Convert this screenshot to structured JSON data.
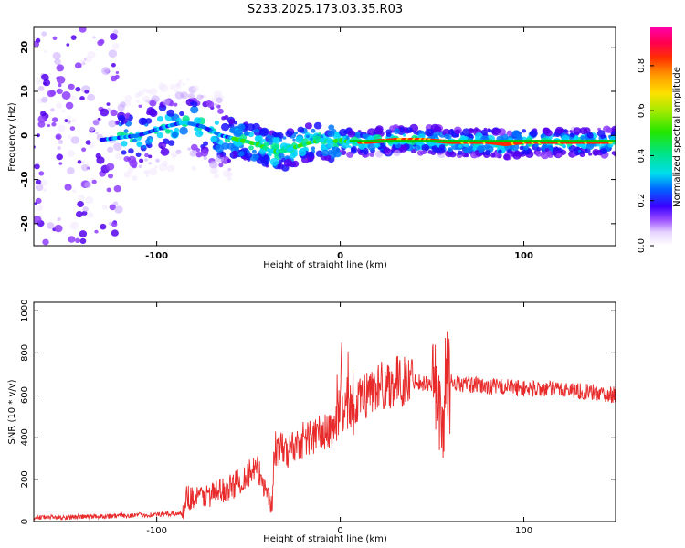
{
  "title": "S233.2025.173.03.35.R03",
  "colors": {
    "snr_line": "#e82a2a",
    "trend_line": "#00cc00",
    "colormap": [
      "#ffffff",
      "#f2e8ff",
      "#c9a7ff",
      "#8d3cff",
      "#5500ee",
      "#1a10ff",
      "#0077ff",
      "#00d5ff",
      "#00e58f",
      "#32e600",
      "#b8ea00",
      "#ffd400",
      "#ff9100",
      "#ff2a00",
      "#ff0099"
    ]
  },
  "chart_data": [
    {
      "type": "heatmap",
      "xlabel": "Height of straight line (km)",
      "ylabel": "Frequency (Hz)",
      "xlim": [
        -167,
        150
      ],
      "ylim": [
        -25,
        24.5
      ],
      "xticks": [
        -100,
        0,
        100
      ],
      "yticks": [
        -20,
        -10,
        0,
        10,
        20
      ],
      "x_tick_labels": [
        "-100",
        "0",
        "100"
      ],
      "y_tick_labels": [
        "-20",
        "-10",
        "0",
        "10",
        "20"
      ],
      "colorbar": {
        "label": "Normalized spectral amplitude",
        "range": [
          0,
          0.97
        ],
        "ticks": [
          0,
          0.2,
          0.4,
          0.6,
          0.8
        ],
        "tick_labels": [
          "0.0",
          "0.2",
          "0.4",
          "0.6",
          "0.8"
        ]
      },
      "ridge": {
        "x": [
          -130,
          -110,
          -95,
          -85,
          -75,
          -65,
          -55,
          -45,
          -38,
          -30,
          -20,
          -10,
          -5,
          0,
          5,
          15,
          30,
          45,
          60,
          80,
          90,
          100,
          120,
          148
        ],
        "y": [
          -1,
          0,
          2,
          3,
          2,
          0,
          -1,
          -2,
          -3.5,
          -3.5,
          -2,
          -1,
          -1.5,
          -1,
          -1.5,
          -1.5,
          -1,
          -1,
          -1.5,
          -1.5,
          -2,
          -1.5,
          -1.5,
          -1.5
        ]
      },
      "trend_line": {
        "x": [
          5,
          150
        ],
        "y": [
          -1.2,
          -1.2
        ]
      }
    },
    {
      "type": "line",
      "xlabel": "Height of straight line (km)",
      "ylabel": "SNR (10 * v/v)",
      "xlim": [
        -167,
        150
      ],
      "ylim": [
        0,
        1040
      ],
      "xticks": [
        -100,
        0,
        100
      ],
      "yticks": [
        0,
        200,
        400,
        600,
        800,
        1000
      ],
      "x_tick_labels": [
        "-100",
        "0",
        "100"
      ],
      "y_tick_labels": [
        "0",
        "200",
        "400",
        "600",
        "800",
        "1000"
      ],
      "series": [
        {
          "x": [
            -167,
            -150,
            -130,
            -110,
            -95,
            -86,
            -84,
            -80,
            -70,
            -60,
            -50,
            -45,
            -40,
            -37,
            -36,
            -30,
            -20,
            -10,
            -5,
            -2,
            0,
            3,
            5,
            8,
            10,
            12,
            15,
            20,
            25,
            30,
            40,
            50,
            53,
            55,
            57,
            60,
            65,
            70,
            80,
            90,
            100,
            110,
            120,
            130,
            140,
            150
          ],
          "y": [
            20,
            20,
            25,
            30,
            35,
            40,
            120,
            110,
            130,
            160,
            230,
            240,
            150,
            60,
            350,
            330,
            390,
            420,
            420,
            480,
            550,
            520,
            570,
            500,
            560,
            590,
            610,
            640,
            650,
            660,
            670,
            650,
            680,
            350,
            650,
            670,
            650,
            650,
            640,
            640,
            630,
            630,
            630,
            620,
            610,
            600
          ]
        }
      ]
    }
  ]
}
